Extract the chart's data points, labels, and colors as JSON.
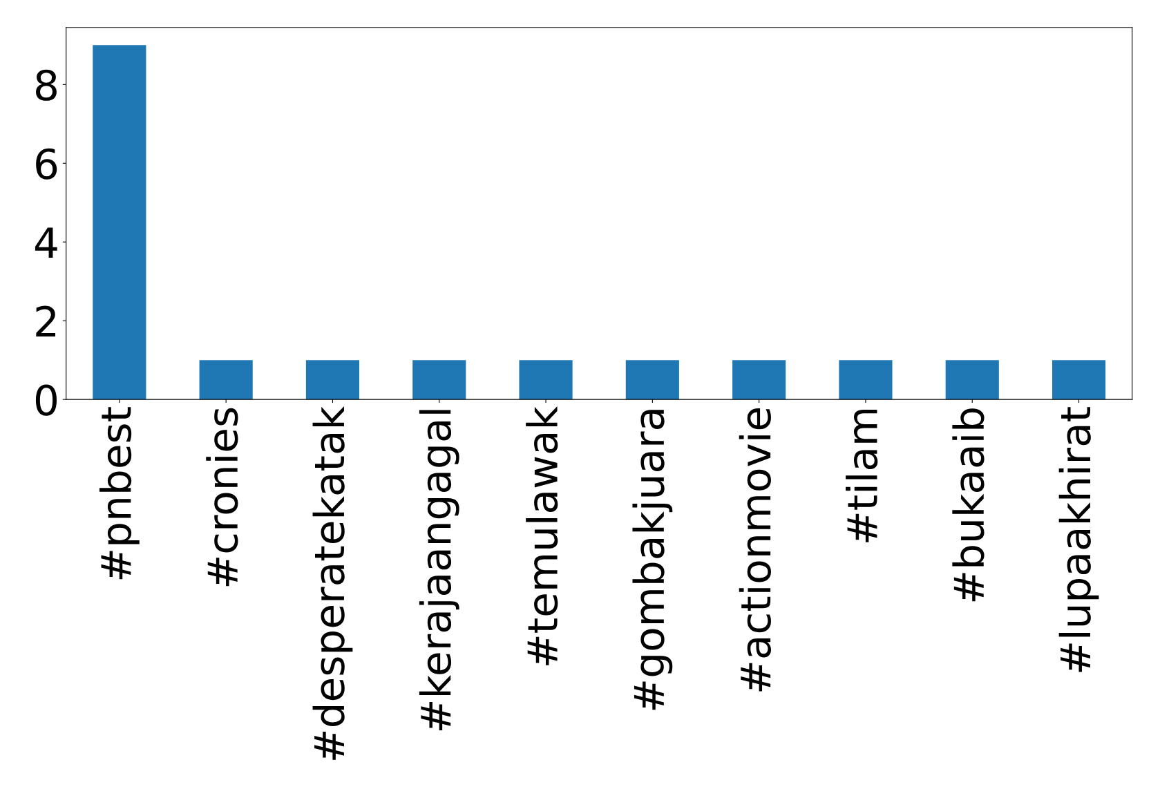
{
  "chart_data": {
    "type": "bar",
    "categories": [
      "#pnbest",
      "#cronies",
      "#desperatekatak",
      "#kerajaangagal",
      "#temulawak",
      "#gombakjuara",
      "#actionmovie",
      "#tilam",
      "#bukaaib",
      "#lupaakhirat"
    ],
    "values": [
      9,
      1,
      1,
      1,
      1,
      1,
      1,
      1,
      1,
      1
    ],
    "color": "#1f77b4",
    "ylim": [
      0,
      9.45
    ],
    "yticks": [
      0,
      2,
      4,
      6,
      8
    ],
    "grid": false
  }
}
